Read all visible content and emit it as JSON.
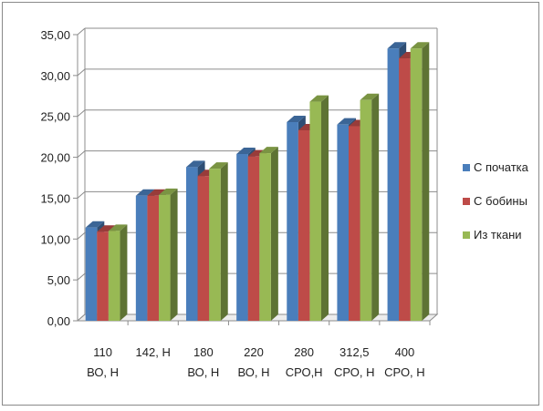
{
  "chart_data": {
    "type": "bar",
    "title": "",
    "xlabel": "",
    "ylabel": "",
    "ylim": [
      0,
      35
    ],
    "y_ticks": [
      "0,00",
      "5,00",
      "10,00",
      "15,00",
      "20,00",
      "25,00",
      "30,00",
      "35,00"
    ],
    "grid": true,
    "legend_position": "right",
    "categories": [
      [
        "110",
        "ВО, Н"
      ],
      [
        "142, Н"
      ],
      [
        "180",
        "ВО, Н"
      ],
      [
        "220",
        "ВО, Н"
      ],
      [
        "280",
        "СРО,Н"
      ],
      [
        "312,5",
        "СРО, Н"
      ],
      [
        "400",
        "СРО, Н"
      ]
    ],
    "series": [
      {
        "name": "С початка",
        "color": "#4a7ebb",
        "values": [
          11.4,
          15.3,
          18.8,
          20.4,
          24.3,
          24.0,
          33.3
        ]
      },
      {
        "name": "С бобины",
        "color": "#be4b48",
        "values": [
          10.9,
          15.3,
          17.7,
          20.1,
          23.3,
          23.8,
          32.1
        ]
      },
      {
        "name": "Из ткани",
        "color": "#98b954",
        "values": [
          11.0,
          15.4,
          18.6,
          20.5,
          26.8,
          27.0,
          33.3
        ]
      }
    ]
  }
}
